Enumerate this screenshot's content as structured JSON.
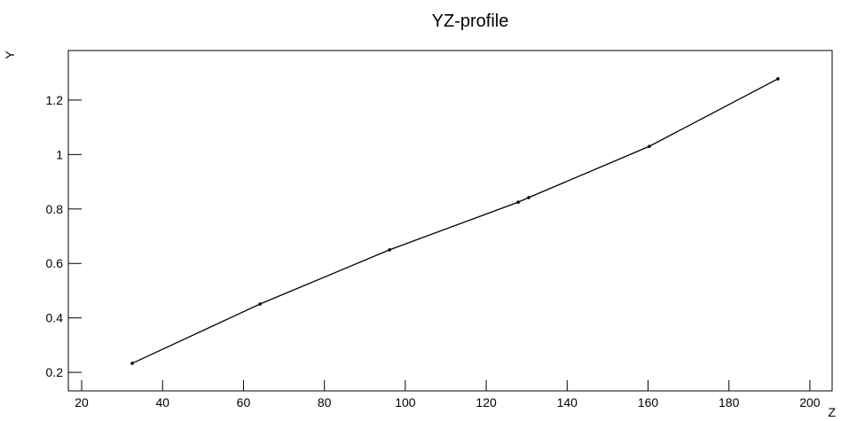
{
  "chart_data": {
    "type": "line",
    "title": "YZ-profile",
    "x_label": "Z",
    "y_label": "Y",
    "x": [
      32.5,
      64.1,
      96.1,
      127.9,
      130.5,
      160.3,
      192.1
    ],
    "series": [
      {
        "color": "#000000",
        "values": [
          0.233,
          0.451,
          0.65,
          0.825,
          0.842,
          1.03,
          1.278
        ]
      }
    ],
    "xlim": [
      16.7,
      205.5
    ],
    "xticks": [
      20,
      40,
      60,
      80,
      100,
      120,
      140,
      160,
      180,
      200
    ],
    "ylim": [
      0.132,
      1.382
    ],
    "yticks": [
      0.2,
      0.4,
      0.6,
      0.8,
      1,
      1.2
    ]
  }
}
